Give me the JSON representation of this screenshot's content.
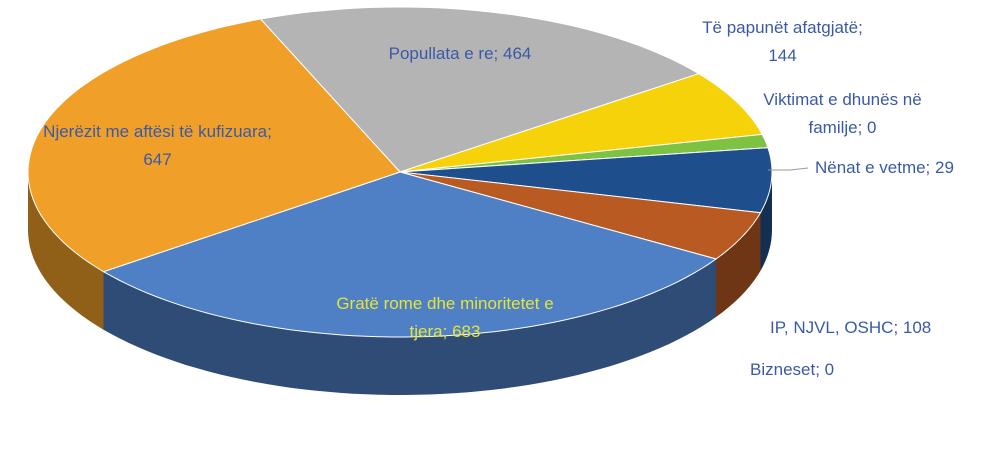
{
  "chart_data": {
    "type": "pie3d",
    "values": [
      464,
      144,
      29,
      0,
      140,
      108,
      0,
      683,
      647
    ],
    "value_labels": [
      "Popullata e re; 464",
      "Të papunët afatgjatë; 144",
      "Nënat e vetme; 29",
      "Viktimat e dhunës në familje; 0",
      null,
      "IP, NJVL, OSHC; 108",
      "Bizneset; 0",
      "Gratë rome dhe minoritetet e tjera; 683",
      "Njerëzit me aftësi të kufizuara; 647"
    ],
    "colors": [
      "#b4b4b4",
      "#f5d20a",
      "#7dc242",
      "#5a9a30",
      "#1f4e8c",
      "#b85a22",
      "#8a8a8a",
      "#4f7fc4",
      "#f0a028"
    ]
  }
}
